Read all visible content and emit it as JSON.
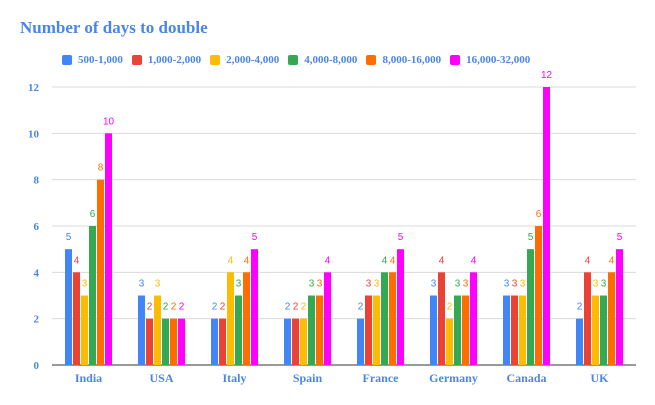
{
  "chart_data": {
    "type": "bar",
    "title": "Number of days to double",
    "xlabel": "",
    "ylabel": "",
    "categories": [
      "India",
      "USA",
      "Italy",
      "Spain",
      "France",
      "Germany",
      "Canada",
      "UK"
    ],
    "series": [
      {
        "name": "500-1,000",
        "color": "#4285f4",
        "values": [
          5,
          3,
          2,
          2,
          2,
          3,
          3,
          2
        ]
      },
      {
        "name": "1,000-2,000",
        "color": "#ea4335",
        "values": [
          4,
          2,
          2,
          2,
          3,
          4,
          3,
          4
        ]
      },
      {
        "name": "2,000-4,000",
        "color": "#fbbc04",
        "values": [
          3,
          3,
          4,
          2,
          3,
          2,
          3,
          3
        ]
      },
      {
        "name": "4,000-8,000",
        "color": "#34a853",
        "values": [
          6,
          2,
          3,
          3,
          4,
          3,
          5,
          3
        ]
      },
      {
        "name": "8,000-16,000",
        "color": "#ff6d01",
        "values": [
          8,
          2,
          4,
          3,
          4,
          3,
          6,
          4
        ]
      },
      {
        "name": "16,000-32,000",
        "color": "#ff00ff",
        "values": [
          10,
          2,
          5,
          4,
          5,
          4,
          12,
          5
        ]
      }
    ],
    "ylim": [
      0,
      12
    ],
    "yticks": [
      "0",
      "2",
      "4",
      "6",
      "8",
      "10",
      "12"
    ],
    "grid": true,
    "legend_position": "top",
    "colors": {
      "axis_text": "#4a86e8",
      "grid": "#d9d9d9",
      "axis_line": "#333333"
    }
  }
}
